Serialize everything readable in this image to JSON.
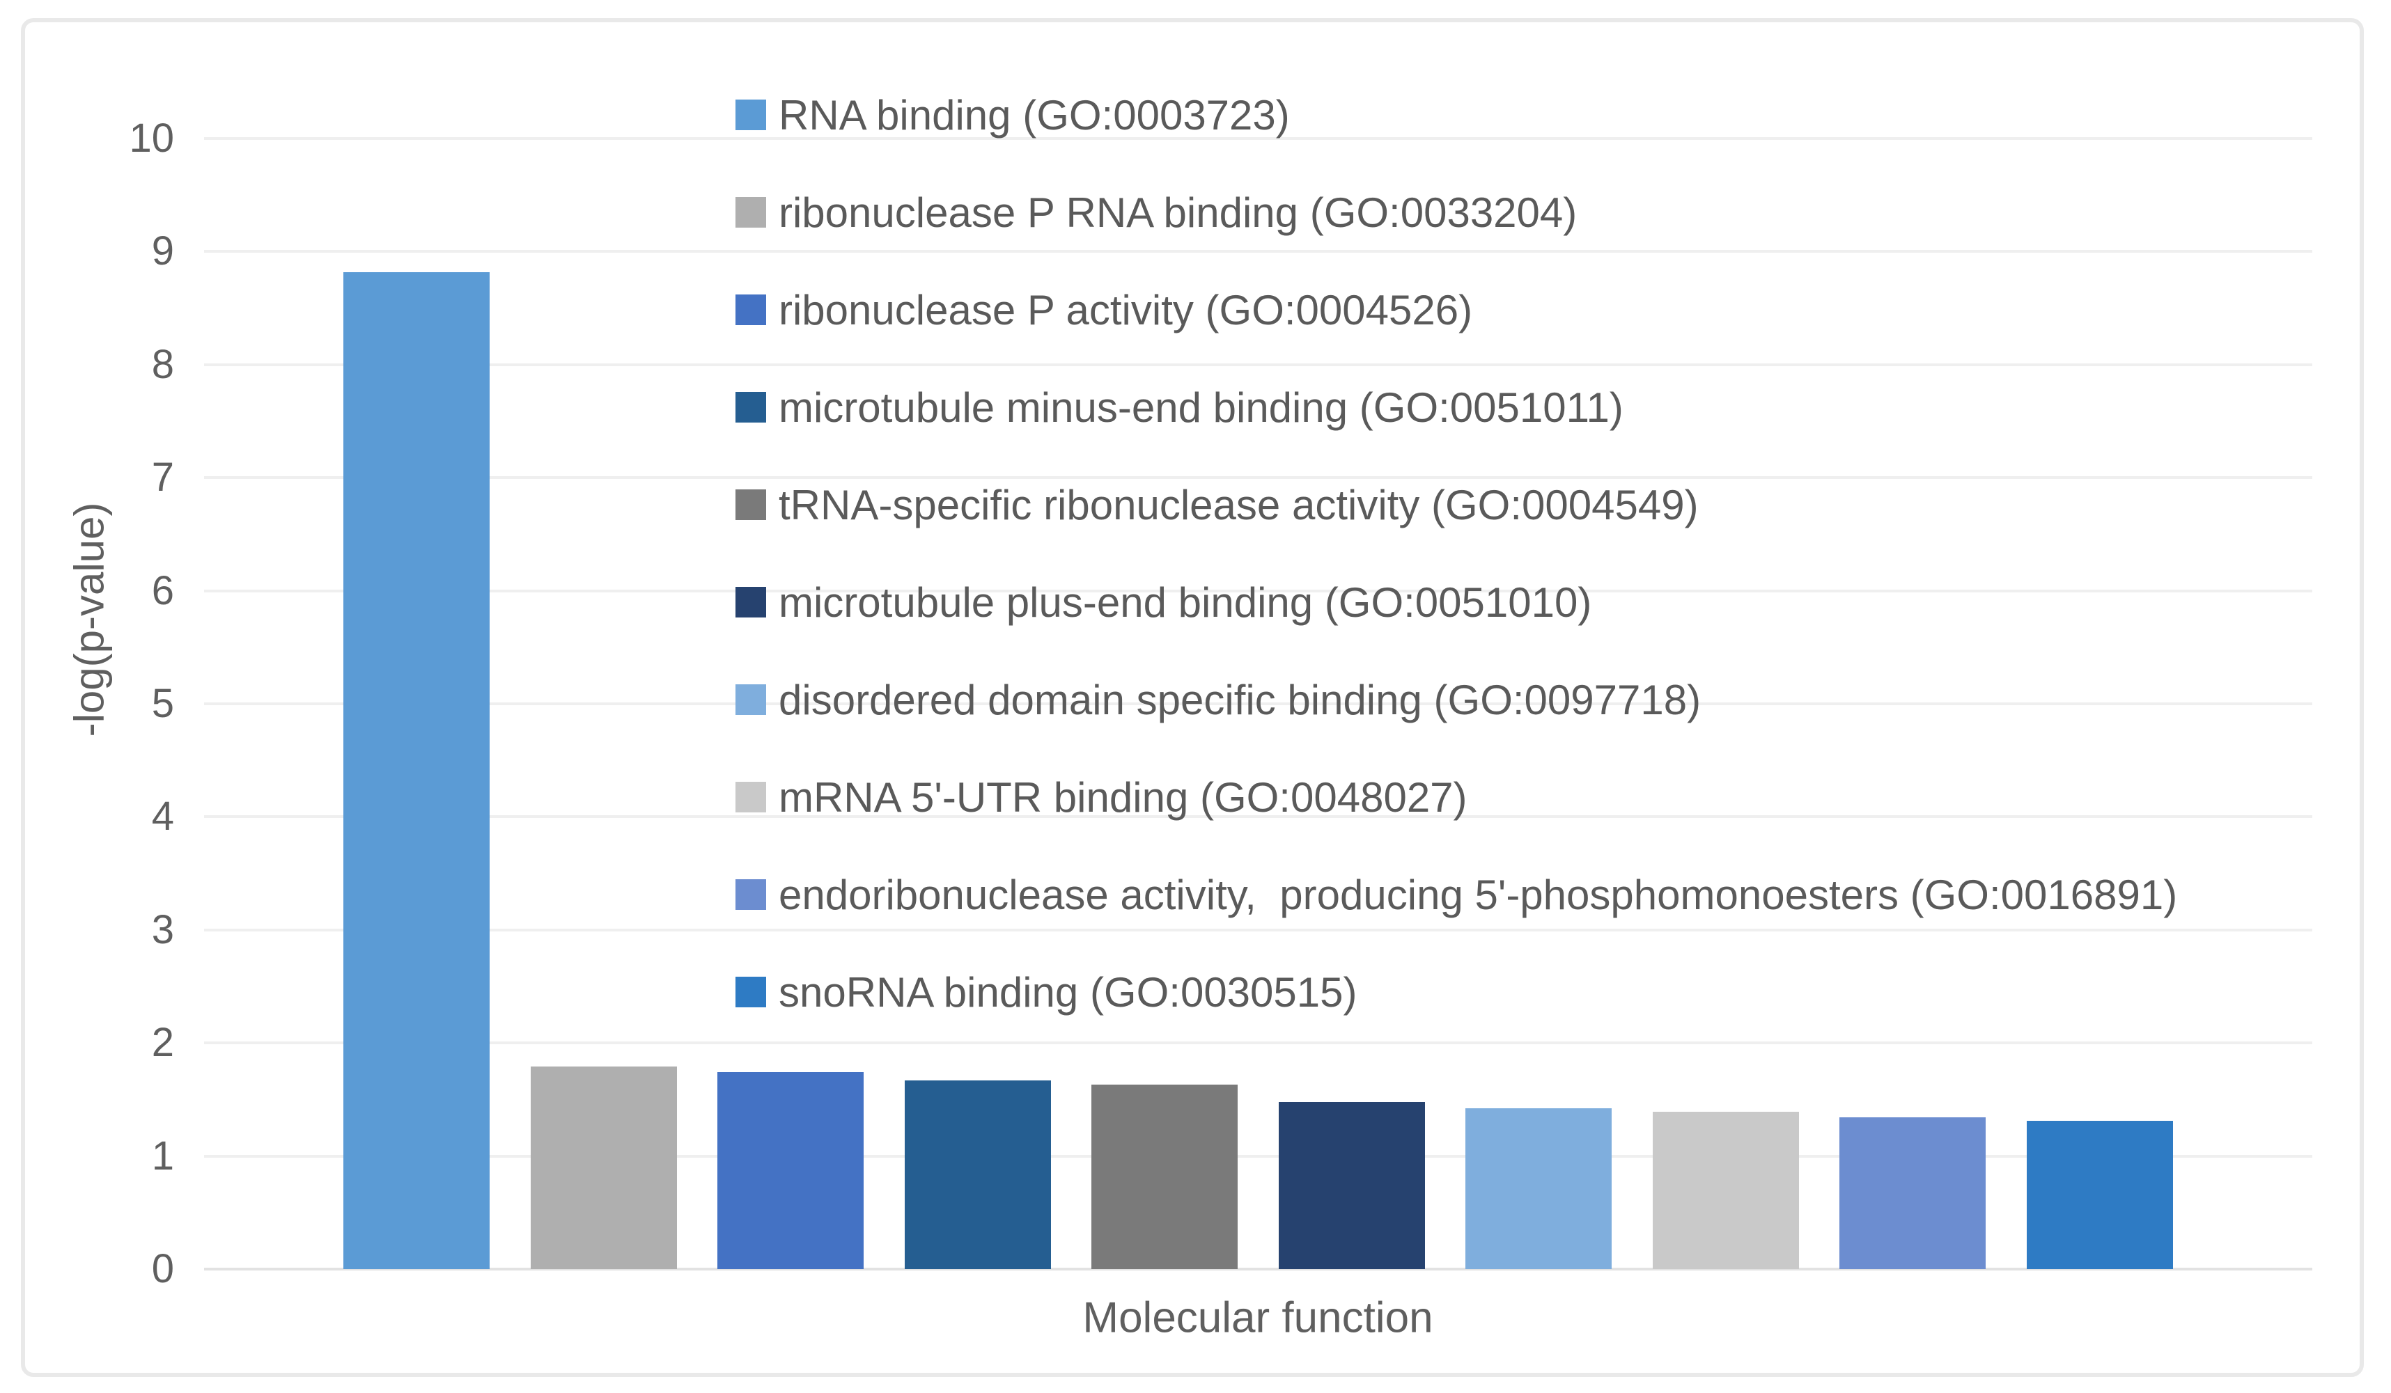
{
  "chart_data": {
    "type": "bar",
    "title": "",
    "xlabel": "Molecular function",
    "ylabel": "-log(p-value)",
    "ylim": [
      0,
      10
    ],
    "yticks": [
      0,
      1,
      2,
      3,
      4,
      5,
      6,
      7,
      8,
      9,
      10
    ],
    "grid": true,
    "legend_position": "top-right-inside",
    "categories": [
      "RNA binding (GO:0003723)",
      "ribonuclease P RNA binding (GO:0033204)",
      "ribonuclease P activity (GO:0004526)",
      "microtubule minus-end binding (GO:0051011)",
      "tRNA-specific ribonuclease activity (GO:0004549)",
      "microtubule plus-end binding (GO:0051010)",
      "disordered domain specific binding (GO:0097718)",
      "mRNA 5'-UTR binding (GO:0048027)",
      "endoribonuclease activity,  producing 5'-phosphomonoesters (GO:0016891)",
      "snoRNA binding (GO:0030515)"
    ],
    "values": [
      8.82,
      1.79,
      1.74,
      1.67,
      1.63,
      1.48,
      1.42,
      1.39,
      1.34,
      1.31
    ],
    "colors": [
      "#5B9BD5",
      "#AFAFAF",
      "#4472C4",
      "#255E91",
      "#7A7A7A",
      "#26426F",
      "#7FAEDD",
      "#C9C9C9",
      "#6C8DD0",
      "#2E7BC4"
    ]
  }
}
